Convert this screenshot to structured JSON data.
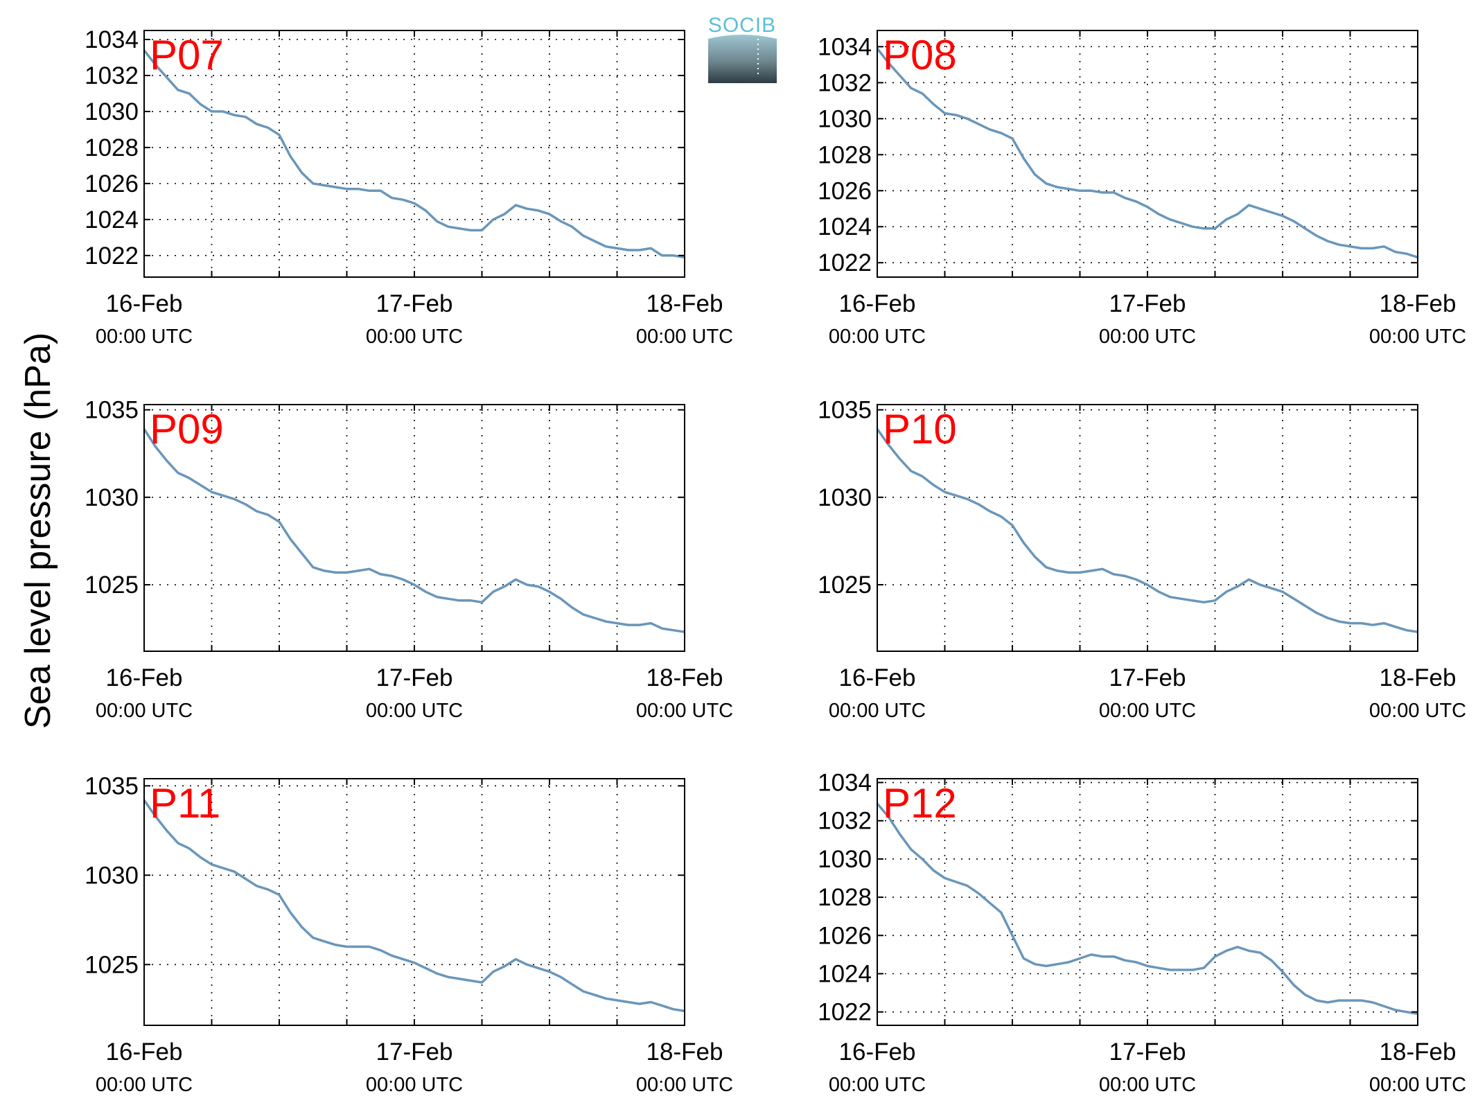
{
  "figure": {
    "ylabel": "Sea level pressure (hPa)",
    "logo_text": "SOCIB",
    "line_color": "#6a96ba",
    "label_color": "#ff0000"
  },
  "chart_data": [
    {
      "type": "line",
      "label": "P07",
      "xlim": [
        0,
        48
      ],
      "ylim": [
        1020.8,
        1034.5
      ],
      "yticks": [
        1022,
        1024,
        1026,
        1028,
        1030,
        1032,
        1034
      ],
      "xticks": [
        {
          "t": 0,
          "label": "16-Feb",
          "sub": "00:00 UTC"
        },
        {
          "t": 24,
          "label": "17-Feb",
          "sub": "00:00 UTC"
        },
        {
          "t": 48,
          "label": "18-Feb",
          "sub": "00:00 UTC"
        }
      ],
      "x": [
        0,
        1,
        2,
        3,
        4,
        5,
        6,
        7,
        8,
        9,
        10,
        11,
        12,
        13,
        14,
        15,
        16,
        17,
        18,
        19,
        20,
        21,
        22,
        23,
        24,
        25,
        26,
        27,
        28,
        29,
        30,
        31,
        32,
        33,
        34,
        35,
        36,
        37,
        38,
        39,
        40,
        41,
        42,
        43,
        44,
        45,
        46,
        47,
        48
      ],
      "y": [
        1033.4,
        1032.6,
        1031.9,
        1031.2,
        1031.0,
        1030.4,
        1030.0,
        1030.0,
        1029.8,
        1029.7,
        1029.3,
        1029.1,
        1028.7,
        1027.5,
        1026.6,
        1026.0,
        1025.9,
        1025.8,
        1025.7,
        1025.7,
        1025.6,
        1025.6,
        1025.2,
        1025.1,
        1024.9,
        1024.5,
        1023.9,
        1023.6,
        1023.5,
        1023.4,
        1023.4,
        1024.0,
        1024.3,
        1024.8,
        1024.6,
        1024.5,
        1024.3,
        1023.9,
        1023.6,
        1023.1,
        1022.8,
        1022.5,
        1022.4,
        1022.3,
        1022.3,
        1022.4,
        1022.0,
        1022.0,
        1021.9
      ]
    },
    {
      "type": "line",
      "label": "P08",
      "xlim": [
        0,
        48
      ],
      "ylim": [
        1021.2,
        1034.9
      ],
      "yticks": [
        1022,
        1024,
        1026,
        1028,
        1030,
        1032,
        1034
      ],
      "xticks": [
        {
          "t": 0,
          "label": "16-Feb",
          "sub": "00:00 UTC"
        },
        {
          "t": 24,
          "label": "17-Feb",
          "sub": "00:00 UTC"
        },
        {
          "t": 48,
          "label": "18-Feb",
          "sub": "00:00 UTC"
        }
      ],
      "x": [
        0,
        1,
        2,
        3,
        4,
        5,
        6,
        7,
        8,
        9,
        10,
        11,
        12,
        13,
        14,
        15,
        16,
        17,
        18,
        19,
        20,
        21,
        22,
        23,
        24,
        25,
        26,
        27,
        28,
        29,
        30,
        31,
        32,
        33,
        34,
        35,
        36,
        37,
        38,
        39,
        40,
        41,
        42,
        43,
        44,
        45,
        46,
        47,
        48
      ],
      "y": [
        1033.9,
        1033.1,
        1032.4,
        1031.7,
        1031.4,
        1030.8,
        1030.3,
        1030.2,
        1030.0,
        1029.7,
        1029.4,
        1029.2,
        1028.9,
        1027.8,
        1026.9,
        1026.4,
        1026.2,
        1026.1,
        1026.0,
        1026.0,
        1025.9,
        1025.9,
        1025.6,
        1025.4,
        1025.1,
        1024.7,
        1024.4,
        1024.2,
        1024.0,
        1023.9,
        1023.9,
        1024.4,
        1024.7,
        1025.2,
        1025.0,
        1024.8,
        1024.6,
        1024.3,
        1023.9,
        1023.5,
        1023.2,
        1023.0,
        1022.9,
        1022.8,
        1022.8,
        1022.9,
        1022.6,
        1022.5,
        1022.3
      ]
    },
    {
      "type": "line",
      "label": "P09",
      "xlim": [
        0,
        48
      ],
      "ylim": [
        1021.2,
        1035.3
      ],
      "yticks": [
        1025,
        1030,
        1035
      ],
      "xticks": [
        {
          "t": 0,
          "label": "16-Feb",
          "sub": "00:00 UTC"
        },
        {
          "t": 24,
          "label": "17-Feb",
          "sub": "00:00 UTC"
        },
        {
          "t": 48,
          "label": "18-Feb",
          "sub": "00:00 UTC"
        }
      ],
      "x": [
        0,
        1,
        2,
        3,
        4,
        5,
        6,
        7,
        8,
        9,
        10,
        11,
        12,
        13,
        14,
        15,
        16,
        17,
        18,
        19,
        20,
        21,
        22,
        23,
        24,
        25,
        26,
        27,
        28,
        29,
        30,
        31,
        32,
        33,
        34,
        35,
        36,
        37,
        38,
        39,
        40,
        41,
        42,
        43,
        44,
        45,
        46,
        47,
        48
      ],
      "y": [
        1033.9,
        1032.9,
        1032.1,
        1031.4,
        1031.1,
        1030.7,
        1030.3,
        1030.1,
        1029.9,
        1029.6,
        1029.2,
        1029.0,
        1028.6,
        1027.6,
        1026.8,
        1026.0,
        1025.8,
        1025.7,
        1025.7,
        1025.8,
        1025.9,
        1025.6,
        1025.5,
        1025.3,
        1025.0,
        1024.6,
        1024.3,
        1024.2,
        1024.1,
        1024.1,
        1024.0,
        1024.6,
        1024.9,
        1025.3,
        1025.0,
        1024.9,
        1024.6,
        1024.2,
        1023.7,
        1023.3,
        1023.1,
        1022.9,
        1022.8,
        1022.7,
        1022.7,
        1022.8,
        1022.5,
        1022.4,
        1022.3
      ]
    },
    {
      "type": "line",
      "label": "P10",
      "xlim": [
        0,
        48
      ],
      "ylim": [
        1021.2,
        1035.3
      ],
      "yticks": [
        1025,
        1030,
        1035
      ],
      "xticks": [
        {
          "t": 0,
          "label": "16-Feb",
          "sub": "00:00 UTC"
        },
        {
          "t": 24,
          "label": "17-Feb",
          "sub": "00:00 UTC"
        },
        {
          "t": 48,
          "label": "18-Feb",
          "sub": "00:00 UTC"
        }
      ],
      "x": [
        0,
        1,
        2,
        3,
        4,
        5,
        6,
        7,
        8,
        9,
        10,
        11,
        12,
        13,
        14,
        15,
        16,
        17,
        18,
        19,
        20,
        21,
        22,
        23,
        24,
        25,
        26,
        27,
        28,
        29,
        30,
        31,
        32,
        33,
        34,
        35,
        36,
        37,
        38,
        39,
        40,
        41,
        42,
        43,
        44,
        45,
        46,
        47,
        48
      ],
      "y": [
        1033.9,
        1033.0,
        1032.2,
        1031.5,
        1031.2,
        1030.7,
        1030.3,
        1030.1,
        1029.9,
        1029.6,
        1029.2,
        1028.9,
        1028.4,
        1027.4,
        1026.6,
        1026.0,
        1025.8,
        1025.7,
        1025.7,
        1025.8,
        1025.9,
        1025.6,
        1025.5,
        1025.3,
        1025.0,
        1024.6,
        1024.3,
        1024.2,
        1024.1,
        1024.0,
        1024.1,
        1024.6,
        1024.9,
        1025.3,
        1025.0,
        1024.8,
        1024.6,
        1024.2,
        1023.8,
        1023.4,
        1023.1,
        1022.9,
        1022.8,
        1022.8,
        1022.7,
        1022.8,
        1022.6,
        1022.4,
        1022.3
      ]
    },
    {
      "type": "line",
      "label": "P11",
      "xlim": [
        0,
        48
      ],
      "ylim": [
        1021.6,
        1035.4
      ],
      "yticks": [
        1025,
        1030,
        1035
      ],
      "xticks": [
        {
          "t": 0,
          "label": "16-Feb",
          "sub": "00:00 UTC"
        },
        {
          "t": 24,
          "label": "17-Feb",
          "sub": "00:00 UTC"
        },
        {
          "t": 48,
          "label": "18-Feb",
          "sub": "00:00 UTC"
        }
      ],
      "x": [
        0,
        1,
        2,
        3,
        4,
        5,
        6,
        7,
        8,
        9,
        10,
        11,
        12,
        13,
        14,
        15,
        16,
        17,
        18,
        19,
        20,
        21,
        22,
        23,
        24,
        25,
        26,
        27,
        28,
        29,
        30,
        31,
        32,
        33,
        34,
        35,
        36,
        37,
        38,
        39,
        40,
        41,
        42,
        43,
        44,
        45,
        46,
        47,
        48
      ],
      "y": [
        1034.2,
        1033.3,
        1032.5,
        1031.8,
        1031.5,
        1031.0,
        1030.6,
        1030.4,
        1030.2,
        1029.8,
        1029.4,
        1029.2,
        1028.9,
        1027.9,
        1027.1,
        1026.5,
        1026.3,
        1026.1,
        1026.0,
        1026.0,
        1026.0,
        1025.8,
        1025.5,
        1025.3,
        1025.1,
        1024.8,
        1024.5,
        1024.3,
        1024.2,
        1024.1,
        1024.0,
        1024.6,
        1024.9,
        1025.3,
        1025.0,
        1024.8,
        1024.6,
        1024.3,
        1023.9,
        1023.5,
        1023.3,
        1023.1,
        1023.0,
        1022.9,
        1022.8,
        1022.9,
        1022.7,
        1022.5,
        1022.4
      ]
    },
    {
      "type": "line",
      "label": "P12",
      "xlim": [
        0,
        48
      ],
      "ylim": [
        1021.3,
        1034.2
      ],
      "yticks": [
        1022,
        1024,
        1026,
        1028,
        1030,
        1032,
        1034
      ],
      "xticks": [
        {
          "t": 0,
          "label": "16-Feb",
          "sub": "00:00 UTC"
        },
        {
          "t": 24,
          "label": "17-Feb",
          "sub": "00:00 UTC"
        },
        {
          "t": 48,
          "label": "18-Feb",
          "sub": "00:00 UTC"
        }
      ],
      "x": [
        0,
        1,
        2,
        3,
        4,
        5,
        6,
        7,
        8,
        9,
        10,
        11,
        12,
        13,
        14,
        15,
        16,
        17,
        18,
        19,
        20,
        21,
        22,
        23,
        24,
        25,
        26,
        27,
        28,
        29,
        30,
        31,
        32,
        33,
        34,
        35,
        36,
        37,
        38,
        39,
        40,
        41,
        42,
        43,
        44,
        45,
        46,
        47,
        48
      ],
      "y": [
        1032.9,
        1032.2,
        1031.3,
        1030.5,
        1030.0,
        1029.4,
        1029.0,
        1028.8,
        1028.6,
        1028.2,
        1027.7,
        1027.2,
        1026.0,
        1024.8,
        1024.5,
        1024.4,
        1024.5,
        1024.6,
        1024.8,
        1025.0,
        1024.9,
        1024.9,
        1024.7,
        1024.6,
        1024.4,
        1024.3,
        1024.2,
        1024.2,
        1024.2,
        1024.3,
        1024.9,
        1025.2,
        1025.4,
        1025.2,
        1025.1,
        1024.7,
        1024.1,
        1023.4,
        1022.9,
        1022.6,
        1022.5,
        1022.6,
        1022.6,
        1022.6,
        1022.5,
        1022.3,
        1022.1,
        1022.0,
        1021.9
      ]
    }
  ]
}
